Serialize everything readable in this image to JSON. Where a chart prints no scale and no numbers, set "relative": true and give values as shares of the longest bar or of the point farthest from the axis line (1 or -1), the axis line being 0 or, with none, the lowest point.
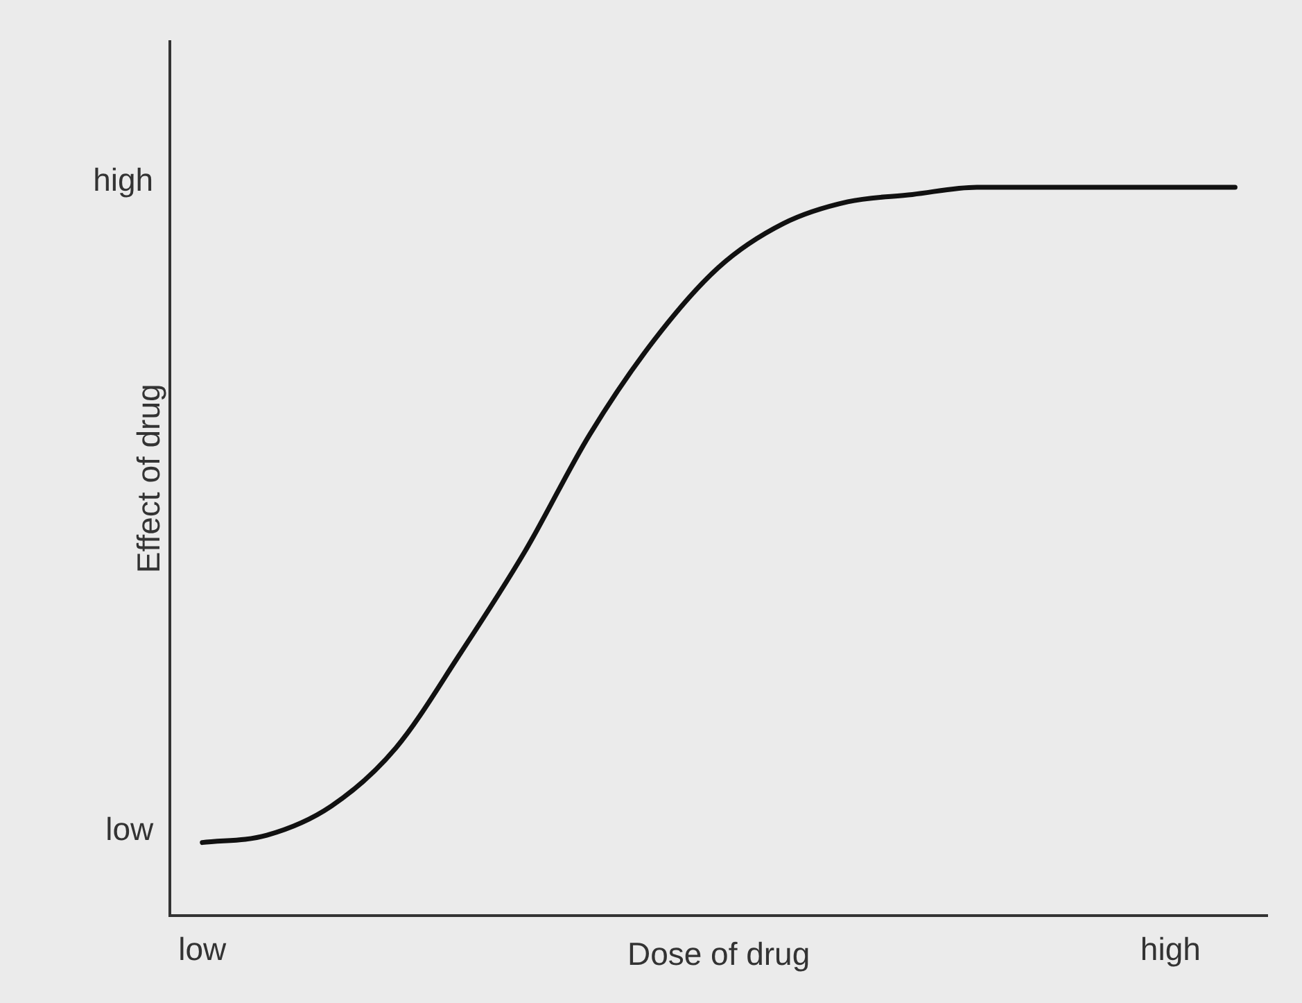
{
  "chart_data": {
    "type": "line",
    "relative": true,
    "xlabel": "Dose of drug",
    "ylabel": "Effect of drug",
    "color": "#111111",
    "categories": [
      "low",
      null,
      null,
      null,
      null,
      null,
      null,
      null,
      null,
      null,
      null,
      null,
      null,
      null,
      null,
      "high",
      null
    ],
    "values": [
      0.1,
      0.11,
      0.15,
      0.23,
      0.36,
      0.5,
      0.66,
      0.79,
      0.89,
      0.95,
      0.98,
      0.99,
      1,
      1,
      1,
      1,
      1
    ],
    "annotations": [
      "low",
      "high"
    ]
  }
}
